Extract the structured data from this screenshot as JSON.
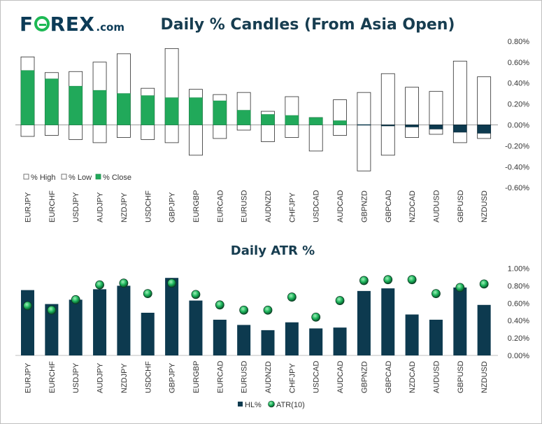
{
  "brand": {
    "logo_prefix": "F",
    "logo_suffix": "REX",
    "logo_domain": ".com"
  },
  "colors": {
    "close_bar": "#21a95a",
    "hl_bar": "#0d3a4f",
    "atr_marker": "#1bb35a",
    "title": "#173d50"
  },
  "chart_data": [
    {
      "type": "bar",
      "title": "Daily % Candles (From Asia Open)",
      "categories": [
        "EURJPY",
        "EURCHF",
        "USDJPY",
        "AUDJPY",
        "NZDJPY",
        "USDCHF",
        "GBPJPY",
        "EURGBP",
        "EURCAD",
        "EURUSD",
        "AUDNZD",
        "CHFJPY",
        "USDCAD",
        "AUDCAD",
        "GBPNZD",
        "GBPCAD",
        "NZDCAD",
        "AUDUSD",
        "GBPUSD",
        "NZDUSD"
      ],
      "series": [
        {
          "name": "% High",
          "values": [
            0.65,
            0.5,
            0.51,
            0.6,
            0.68,
            0.35,
            0.73,
            0.34,
            0.29,
            0.31,
            0.13,
            0.27,
            0.07,
            0.24,
            0.31,
            0.49,
            0.36,
            0.32,
            0.61,
            0.46
          ]
        },
        {
          "name": "% Low",
          "values": [
            -0.11,
            -0.1,
            -0.14,
            -0.17,
            -0.12,
            -0.14,
            -0.17,
            -0.29,
            -0.13,
            -0.05,
            -0.16,
            -0.12,
            -0.25,
            -0.1,
            -0.44,
            -0.29,
            -0.12,
            -0.09,
            -0.17,
            -0.13
          ]
        },
        {
          "name": "% Close",
          "values": [
            0.52,
            0.44,
            0.37,
            0.33,
            0.3,
            0.28,
            0.26,
            0.26,
            0.23,
            0.14,
            0.1,
            0.09,
            0.07,
            0.04,
            0.0,
            -0.01,
            -0.02,
            -0.04,
            -0.07,
            -0.08
          ]
        }
      ],
      "y_ticks": [
        "0.80%",
        "0.60%",
        "0.40%",
        "0.20%",
        "0.00%",
        "-0.20%",
        "-0.40%",
        "-0.60%"
      ],
      "ylim": [
        -0.6,
        0.8
      ],
      "legend_position": "bottom-left"
    },
    {
      "type": "bar",
      "title": "Daily ATR %",
      "categories": [
        "EURJPY",
        "EURCHF",
        "USDJPY",
        "AUDJPY",
        "NZDJPY",
        "USDCHF",
        "GBPJPY",
        "EURGBP",
        "EURCAD",
        "EURUSD",
        "AUDNZD",
        "CHFJPY",
        "USDCAD",
        "AUDCAD",
        "GBPNZD",
        "GBPCAD",
        "NZDCAD",
        "AUDUSD",
        "GBPUSD",
        "NZDUSD"
      ],
      "series": [
        {
          "name": "HL%",
          "values": [
            0.75,
            0.59,
            0.64,
            0.76,
            0.8,
            0.49,
            0.89,
            0.63,
            0.41,
            0.35,
            0.29,
            0.38,
            0.31,
            0.32,
            0.74,
            0.77,
            0.47,
            0.41,
            0.78,
            0.58
          ]
        },
        {
          "name": "ATR(10)",
          "values": [
            0.57,
            0.52,
            0.64,
            0.81,
            0.83,
            0.71,
            0.83,
            0.7,
            0.58,
            0.52,
            0.52,
            0.67,
            0.44,
            0.63,
            0.86,
            0.87,
            0.87,
            0.71,
            0.78,
            0.82
          ]
        }
      ],
      "y_ticks": [
        "1.00%",
        "0.80%",
        "0.60%",
        "0.40%",
        "0.20%",
        "0.00%"
      ],
      "ylim": [
        0,
        1.0
      ],
      "legend_position": "bottom-center"
    }
  ]
}
